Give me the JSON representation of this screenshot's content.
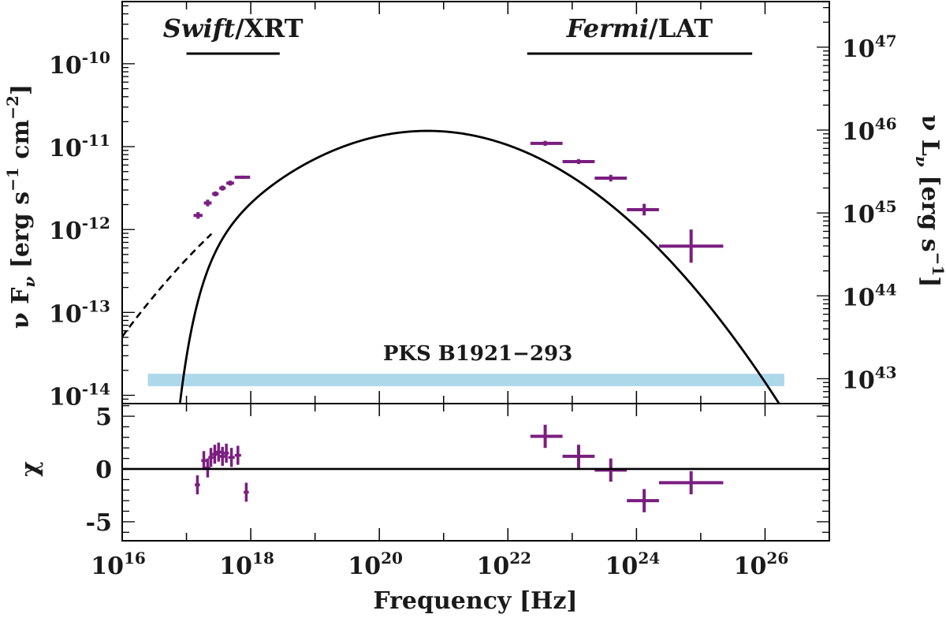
{
  "chart_data": {
    "type": "scatter",
    "source_label": "PKS B1921−293",
    "instruments": [
      {
        "name": "Swift",
        "suffix": "/XRT",
        "range_log_hz": [
          17.0,
          18.45
        ]
      },
      {
        "name": "Fermi",
        "suffix": "/LAT",
        "range_log_hz": [
          22.3,
          25.8
        ]
      }
    ],
    "x_axis": {
      "label": "Frequency [Hz]",
      "range_log": [
        16,
        27
      ],
      "ticks": [
        {
          "log": 16,
          "base": "10",
          "exp": "16"
        },
        {
          "log": 18,
          "base": "10",
          "exp": "18"
        },
        {
          "log": 20,
          "base": "10",
          "exp": "20"
        },
        {
          "log": 22,
          "base": "10",
          "exp": "22"
        },
        {
          "log": 24,
          "base": "10",
          "exp": "24"
        },
        {
          "log": 26,
          "base": "10",
          "exp": "26"
        }
      ]
    },
    "y_axis_left": {
      "label_parts": [
        "ν F",
        "ν",
        " [erg s",
        "−1",
        " cm",
        "−2",
        "]"
      ],
      "range_log": [
        -14.1,
        -9.25
      ],
      "ticks": [
        {
          "log": -10,
          "base": "10",
          "exp": "-10"
        },
        {
          "log": -11,
          "base": "10",
          "exp": "-11"
        },
        {
          "log": -12,
          "base": "10",
          "exp": "-12"
        },
        {
          "log": -13,
          "base": "10",
          "exp": "-13"
        },
        {
          "log": -14,
          "base": "10",
          "exp": "-14"
        }
      ]
    },
    "y_axis_right": {
      "label_parts": [
        "ν L",
        "ν",
        " [erg s",
        "−1",
        "]"
      ],
      "luminosity_offset_log": 56.8,
      "ticks": [
        {
          "log": 47,
          "base": "10",
          "exp": "47"
        },
        {
          "log": 46,
          "base": "10",
          "exp": "46"
        },
        {
          "log": 45,
          "base": "10",
          "exp": "45"
        },
        {
          "log": 44,
          "base": "10",
          "exp": "44"
        },
        {
          "log": 43,
          "base": "10",
          "exp": "43"
        }
      ]
    },
    "residual_axis": {
      "label": "χ",
      "range": [
        -6.8,
        6.2
      ],
      "ticks": [
        {
          "value": 5,
          "label": "5"
        },
        {
          "value": 0,
          "label": "0"
        },
        {
          "value": -5,
          "label": "-5"
        }
      ]
    },
    "model": {
      "name": "log-parabola",
      "peak_log_nu": 20.75,
      "peak_log_flux": -10.81,
      "curvature": 0.11,
      "absorption_log_nu": 17.05,
      "absorption_width": 0.3
    },
    "band": {
      "color": "#add8ea",
      "log_nu_range": [
        16.4,
        26.3
      ],
      "log_flux_range": [
        -13.89,
        -13.74
      ]
    },
    "colors": {
      "data": "#7a1e80",
      "model": "#000000",
      "band": "#add8ea"
    },
    "xrt_points": [
      {
        "x": 17.18,
        "xerr": 0.07,
        "y": -11.83,
        "yerr": 0.04
      },
      {
        "x": 17.33,
        "xerr": 0.06,
        "y": -11.68,
        "yerr": 0.04
      },
      {
        "x": 17.45,
        "xerr": 0.05,
        "y": -11.57,
        "yerr": 0.03
      },
      {
        "x": 17.56,
        "xerr": 0.05,
        "y": -11.5,
        "yerr": 0.03
      },
      {
        "x": 17.68,
        "xerr": 0.06,
        "y": -11.44,
        "yerr": 0.03
      },
      {
        "x": 17.87,
        "xerr": 0.12,
        "y": -11.37,
        "yerr": 0.02
      }
    ],
    "lat_points": [
      {
        "x": 22.58,
        "xlo": 22.35,
        "xhi": 22.85,
        "y": -10.96,
        "yerr": 0.03
      },
      {
        "x": 23.1,
        "xlo": 22.85,
        "xhi": 23.35,
        "y": -11.18,
        "yerr": 0.03
      },
      {
        "x": 23.6,
        "xlo": 23.35,
        "xhi": 23.85,
        "y": -11.38,
        "yerr": 0.04
      },
      {
        "x": 24.12,
        "xlo": 23.85,
        "xhi": 24.35,
        "y": -11.76,
        "yerr": 0.07
      },
      {
        "x": 24.85,
        "xlo": 24.35,
        "xhi": 25.35,
        "y": -12.2,
        "yerr": 0.2
      }
    ],
    "xrt_residuals": [
      {
        "x": 17.17,
        "xerr": 0.04,
        "y": -1.5,
        "yerr": 0.9
      },
      {
        "x": 17.27,
        "xerr": 0.04,
        "y": 0.8,
        "yerr": 0.9
      },
      {
        "x": 17.33,
        "xerr": 0.04,
        "y": 0.1,
        "yerr": 0.9
      },
      {
        "x": 17.38,
        "xerr": 0.04,
        "y": 1.1,
        "yerr": 0.9
      },
      {
        "x": 17.44,
        "xerr": 0.04,
        "y": 1.4,
        "yerr": 0.9
      },
      {
        "x": 17.5,
        "xerr": 0.04,
        "y": 1.6,
        "yerr": 0.9
      },
      {
        "x": 17.56,
        "xerr": 0.04,
        "y": 1.2,
        "yerr": 0.9
      },
      {
        "x": 17.62,
        "xerr": 0.04,
        "y": 1.5,
        "yerr": 0.9
      },
      {
        "x": 17.7,
        "xerr": 0.05,
        "y": 1.1,
        "yerr": 0.9
      },
      {
        "x": 17.8,
        "xerr": 0.05,
        "y": 1.3,
        "yerr": 0.9
      },
      {
        "x": 17.93,
        "xerr": 0.04,
        "y": -2.2,
        "yerr": 0.9
      }
    ],
    "lat_residuals": [
      {
        "x": 22.58,
        "xlo": 22.35,
        "xhi": 22.85,
        "y": 3.1,
        "yerr": 1.1
      },
      {
        "x": 23.1,
        "xlo": 22.85,
        "xhi": 23.35,
        "y": 1.2,
        "yerr": 1.1
      },
      {
        "x": 23.6,
        "xlo": 23.35,
        "xhi": 23.85,
        "y": -0.1,
        "yerr": 1.1
      },
      {
        "x": 24.12,
        "xlo": 23.85,
        "xhi": 24.35,
        "y": -3.0,
        "yerr": 1.1
      },
      {
        "x": 24.85,
        "xlo": 24.35,
        "xhi": 25.35,
        "y": -1.3,
        "yerr": 1.1
      }
    ]
  }
}
